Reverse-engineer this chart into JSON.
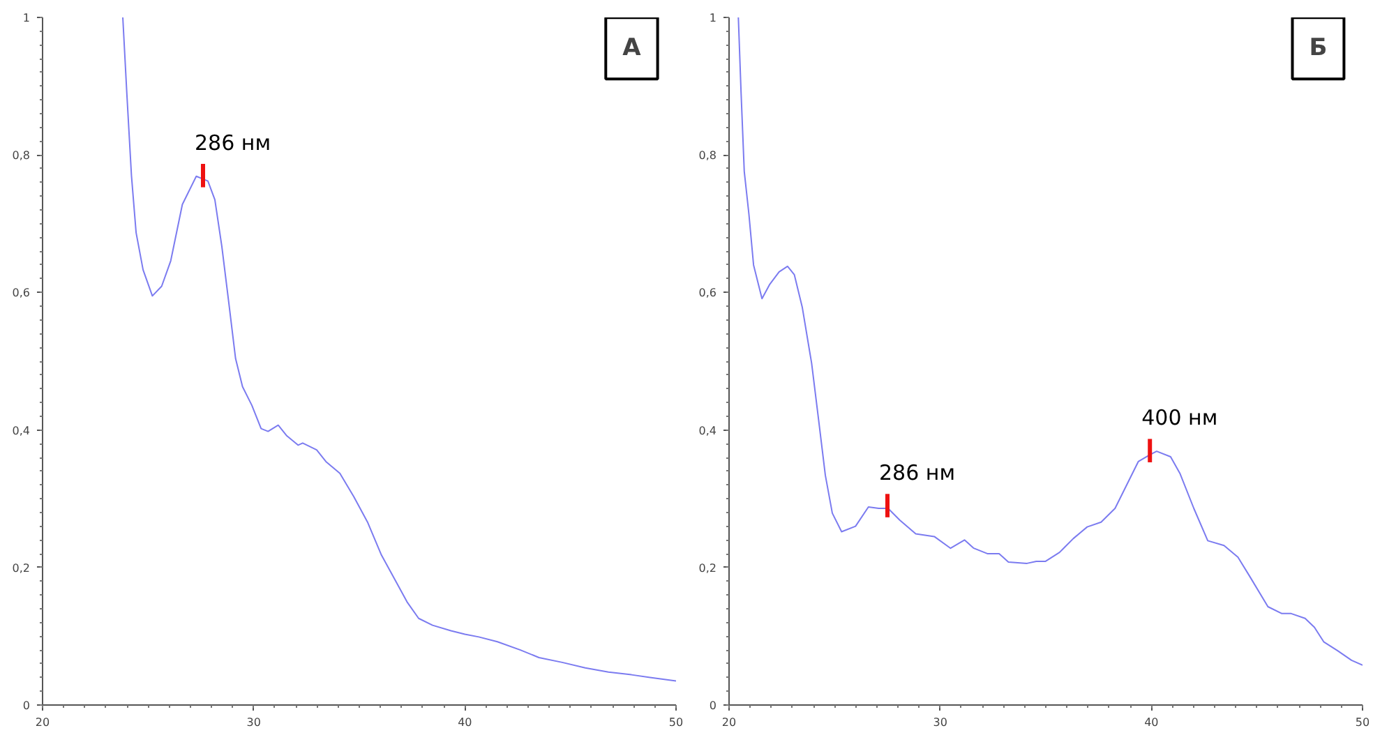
{
  "chart_data": [
    {
      "type": "line",
      "annotations": [
        "А",
        {
          "text": "286 нм",
          "x": 27.6,
          "y": 0.77
        }
      ],
      "series": [
        {
          "color": "#7b7bf0",
          "x": [
            23.8,
            23.99,
            24.21,
            24.43,
            24.76,
            25.2,
            25.64,
            26.07,
            26.62,
            27.28,
            27.83,
            28.16,
            28.49,
            28.82,
            29.14,
            29.47,
            29.91,
            30.35,
            30.68,
            31.16,
            31.55,
            32.1,
            32.32,
            32.98,
            33.42,
            34.08,
            34.74,
            35.39,
            36.05,
            36.71,
            37.26,
            37.81,
            38.47,
            39.34,
            40.0,
            40.66,
            41.54,
            42.63,
            43.51,
            44.61,
            45.7,
            46.8,
            47.89,
            48.77,
            50.0
          ],
          "values": [
            1.0,
            0.89,
            0.77,
            0.687,
            0.633,
            0.595,
            0.609,
            0.646,
            0.728,
            0.769,
            0.762,
            0.735,
            0.667,
            0.585,
            0.504,
            0.463,
            0.436,
            0.402,
            0.398,
            0.407,
            0.392,
            0.378,
            0.381,
            0.371,
            0.354,
            0.337,
            0.303,
            0.266,
            0.218,
            0.181,
            0.15,
            0.126,
            0.116,
            0.108,
            0.103,
            0.099,
            0.092,
            0.08,
            0.069,
            0.062,
            0.054,
            0.048,
            0.044,
            0.04,
            0.035
          ]
        }
      ],
      "xlim": [
        20,
        50
      ],
      "ylim": [
        0,
        1
      ],
      "xticks": [
        20,
        30,
        40,
        50
      ],
      "yticks": [
        0,
        {
          "value": 0.2,
          "label": "0,2"
        },
        {
          "value": 0.4,
          "label": "0,4"
        },
        {
          "value": 0.6,
          "label": "0,6"
        },
        {
          "value": 0.8,
          "label": "0,8"
        },
        1
      ],
      "grid": false
    },
    {
      "type": "line",
      "annotations": [
        "Б",
        {
          "text": "286 нм",
          "x": 27.5,
          "y": 0.29
        },
        {
          "text": "400 нм",
          "x": 39.93,
          "y": 0.37
        }
      ],
      "series": [
        {
          "color": "#7b7bf0",
          "x": [
            20.44,
            20.57,
            20.72,
            20.94,
            21.16,
            21.56,
            21.93,
            22.37,
            22.77,
            23.09,
            23.47,
            23.91,
            24.24,
            24.56,
            24.89,
            25.33,
            25.99,
            26.6,
            27.09,
            27.53,
            28.08,
            28.84,
            29.72,
            30.49,
            31.15,
            31.59,
            32.25,
            32.79,
            33.23,
            34.11,
            34.55,
            34.99,
            35.65,
            36.3,
            36.96,
            37.62,
            38.28,
            38.83,
            39.38,
            39.93,
            40.25,
            40.91,
            41.35,
            42.01,
            42.67,
            43.44,
            44.1,
            44.64,
            45.52,
            46.18,
            46.62,
            47.28,
            47.72,
            48.16,
            48.82,
            49.48,
            50.0
          ],
          "values": [
            1.0,
            0.89,
            0.776,
            0.714,
            0.64,
            0.591,
            0.612,
            0.63,
            0.638,
            0.626,
            0.578,
            0.497,
            0.415,
            0.334,
            0.279,
            0.252,
            0.26,
            0.288,
            0.286,
            0.286,
            0.269,
            0.249,
            0.245,
            0.228,
            0.24,
            0.228,
            0.22,
            0.22,
            0.208,
            0.206,
            0.209,
            0.209,
            0.222,
            0.242,
            0.259,
            0.266,
            0.286,
            0.32,
            0.354,
            0.364,
            0.369,
            0.361,
            0.337,
            0.286,
            0.239,
            0.232,
            0.215,
            0.188,
            0.143,
            0.133,
            0.133,
            0.126,
            0.113,
            0.092,
            0.079,
            0.065,
            0.058
          ]
        }
      ],
      "xlim": [
        20,
        50
      ],
      "ylim": [
        0,
        1
      ],
      "xticks": [
        20,
        30,
        40,
        50
      ],
      "yticks": [
        0,
        {
          "value": 0.2,
          "label": "0,2"
        },
        {
          "value": 0.4,
          "label": "0,4"
        },
        {
          "value": 0.6,
          "label": "0,6"
        },
        {
          "value": 0.8,
          "label": "0,8"
        },
        1
      ],
      "grid": false
    }
  ]
}
